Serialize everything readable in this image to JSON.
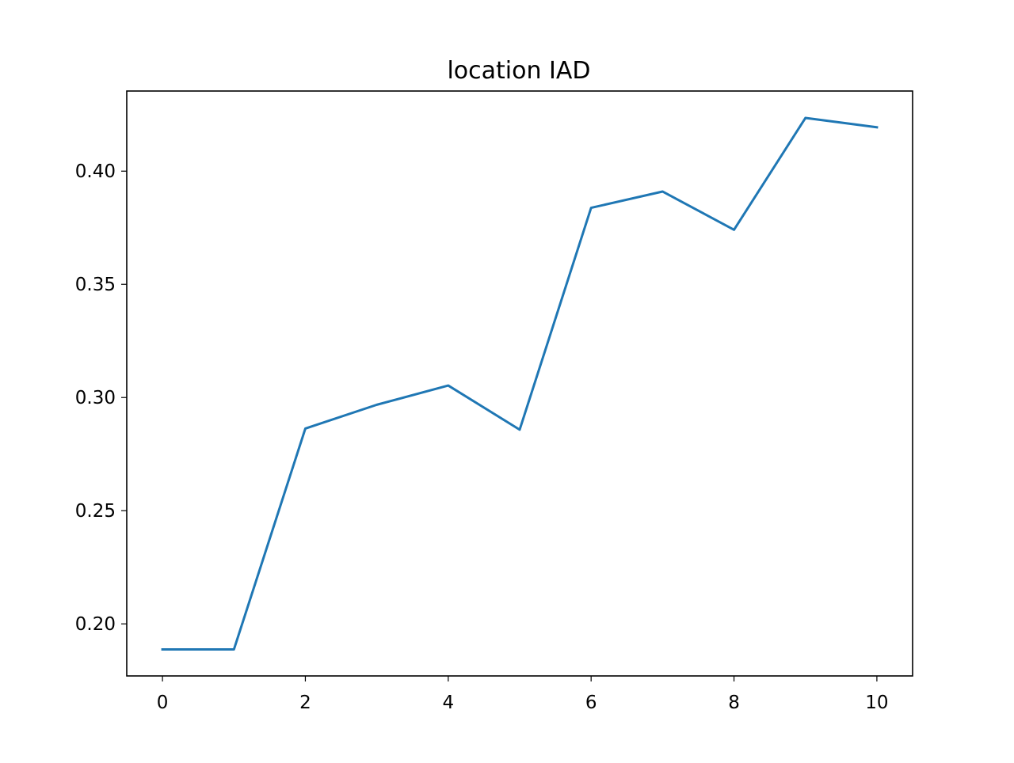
{
  "chart_data": {
    "type": "line",
    "title": "location IAD",
    "xlabel": "",
    "ylabel": "",
    "x": [
      0,
      1,
      2,
      3,
      4,
      5,
      6,
      7,
      8,
      9,
      10
    ],
    "series": [
      {
        "values": [
          0.1887,
          0.1887,
          0.2863,
          0.2968,
          0.3053,
          0.2858,
          0.3838,
          0.391,
          0.3741,
          0.4235,
          0.4194
        ],
        "color": "#1f77b4"
      }
    ],
    "xlim": [
      -0.5,
      10.5
    ],
    "ylim": [
      0.177,
      0.4354
    ],
    "xticks": [
      0,
      2,
      4,
      6,
      8,
      10
    ],
    "xtick_labels": [
      "0",
      "2",
      "4",
      "6",
      "8",
      "10"
    ],
    "yticks": [
      0.2,
      0.25,
      0.3,
      0.35,
      0.4
    ],
    "ytick_labels": [
      "0.20",
      "0.25",
      "0.30",
      "0.35",
      "0.40"
    ],
    "grid": false,
    "legend": "none"
  }
}
